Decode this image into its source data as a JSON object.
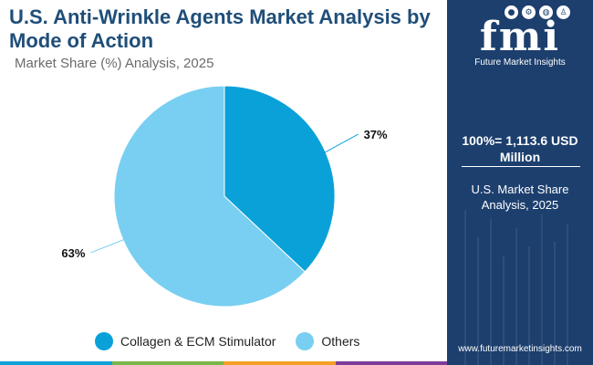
{
  "header": {
    "title": "U.S. Anti-Wrinkle Agents Market Analysis by Mode of Action",
    "subtitle": "Market Share (%) Analysis, 2025"
  },
  "chart_data": {
    "type": "pie",
    "categories": [
      "Collagen & ECM Stimulator",
      "Others"
    ],
    "values": [
      37,
      63
    ],
    "labels": [
      "37%",
      "63%"
    ],
    "colors": [
      "#0aa1d9",
      "#79cff1"
    ],
    "legend_position": "bottom"
  },
  "side_panel": {
    "logo_text": "fmi",
    "logo_caption": "Future Market Insights",
    "total_label": "100%= 1,113.6 USD Million",
    "caption": "U.S. Market Share Analysis, 2025",
    "website": "www.futuremarketinsights.com",
    "background": "#1c3f6e"
  },
  "bottom_bar_colors": [
    "#0aa1d9",
    "#7ab648",
    "#f4a024",
    "#7d3c98"
  ]
}
